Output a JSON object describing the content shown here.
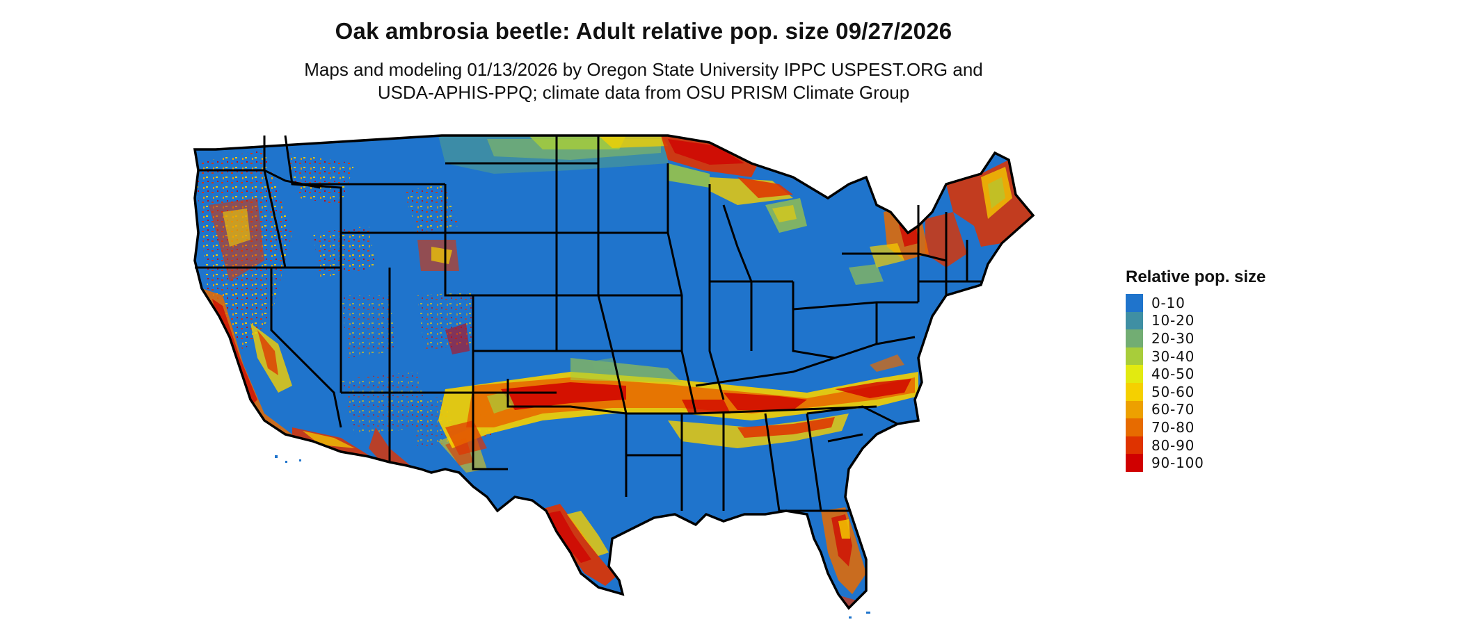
{
  "title": "Oak ambrosia beetle: Adult relative pop. size 09/27/2026",
  "subtitle_line1": "Maps and modeling 01/13/2026 by Oregon State University IPPC USPEST.ORG and",
  "subtitle_line2": "USDA-APHIS-PPQ; climate data from OSU PRISM Climate Group",
  "legend": {
    "title": "Relative pop. size",
    "items": [
      {
        "label": "0-10",
        "color": "#1f74cc"
      },
      {
        "label": "10-20",
        "color": "#3f8fa3"
      },
      {
        "label": "20-30",
        "color": "#72ad73"
      },
      {
        "label": "30-40",
        "color": "#a8cd3a"
      },
      {
        "label": "40-50",
        "color": "#e2ea10"
      },
      {
        "label": "50-60",
        "color": "#f5d000"
      },
      {
        "label": "60-70",
        "color": "#eda000"
      },
      {
        "label": "70-80",
        "color": "#e76b00"
      },
      {
        "label": "80-90",
        "color": "#df3300"
      },
      {
        "label": "90-100",
        "color": "#d00000"
      }
    ]
  },
  "map": {
    "region": "Contiguous United States",
    "base_color": "#1f74cc",
    "border_color": "#000000"
  }
}
